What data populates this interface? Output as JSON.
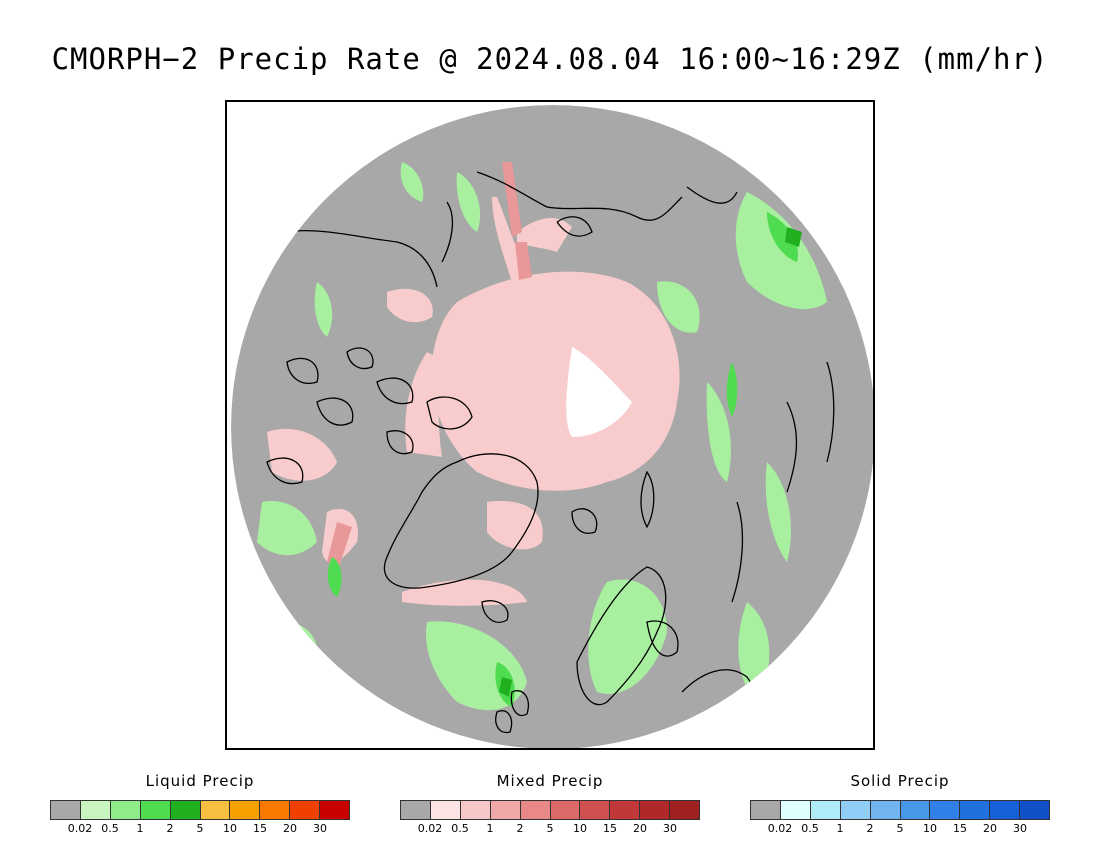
{
  "title": "CMORPH−2 Precip Rate @ 2024.08.04 16:00~16:29Z (mm/hr)",
  "map": {
    "projection": "polar stereographic, north pole centered",
    "background_color": "#a8a8a8",
    "coastline_color": "#000000"
  },
  "legends": [
    {
      "id": "liquid",
      "title": "Liquid Precip",
      "colors": [
        "#a8a8a8",
        "#c8f5c0",
        "#90ec88",
        "#50dc50",
        "#20b020",
        "#f8c040",
        "#f8a000",
        "#f87800",
        "#f04000",
        "#c80000"
      ],
      "ticks": [
        "0.02",
        "0.5",
        "1",
        "2",
        "5",
        "10",
        "15",
        "20",
        "30"
      ]
    },
    {
      "id": "mixed",
      "title": "Mixed Precip",
      "colors": [
        "#a8a8a8",
        "#fde4e4",
        "#f8c8c8",
        "#f0a8a8",
        "#e88888",
        "#dc6868",
        "#d05050",
        "#c03838",
        "#b02828",
        "#a02020"
      ],
      "ticks": [
        "0.02",
        "0.5",
        "1",
        "2",
        "5",
        "10",
        "15",
        "20",
        "30"
      ]
    },
    {
      "id": "solid",
      "title": "Solid Precip",
      "colors": [
        "#a8a8a8",
        "#e0ffff",
        "#b0ecf8",
        "#90cef8",
        "#70b4f0",
        "#4898e8",
        "#3080e8",
        "#2070e0",
        "#1860d8",
        "#1050c8"
      ],
      "ticks": [
        "0.02",
        "0.5",
        "1",
        "2",
        "5",
        "10",
        "15",
        "20",
        "30"
      ]
    }
  ]
}
